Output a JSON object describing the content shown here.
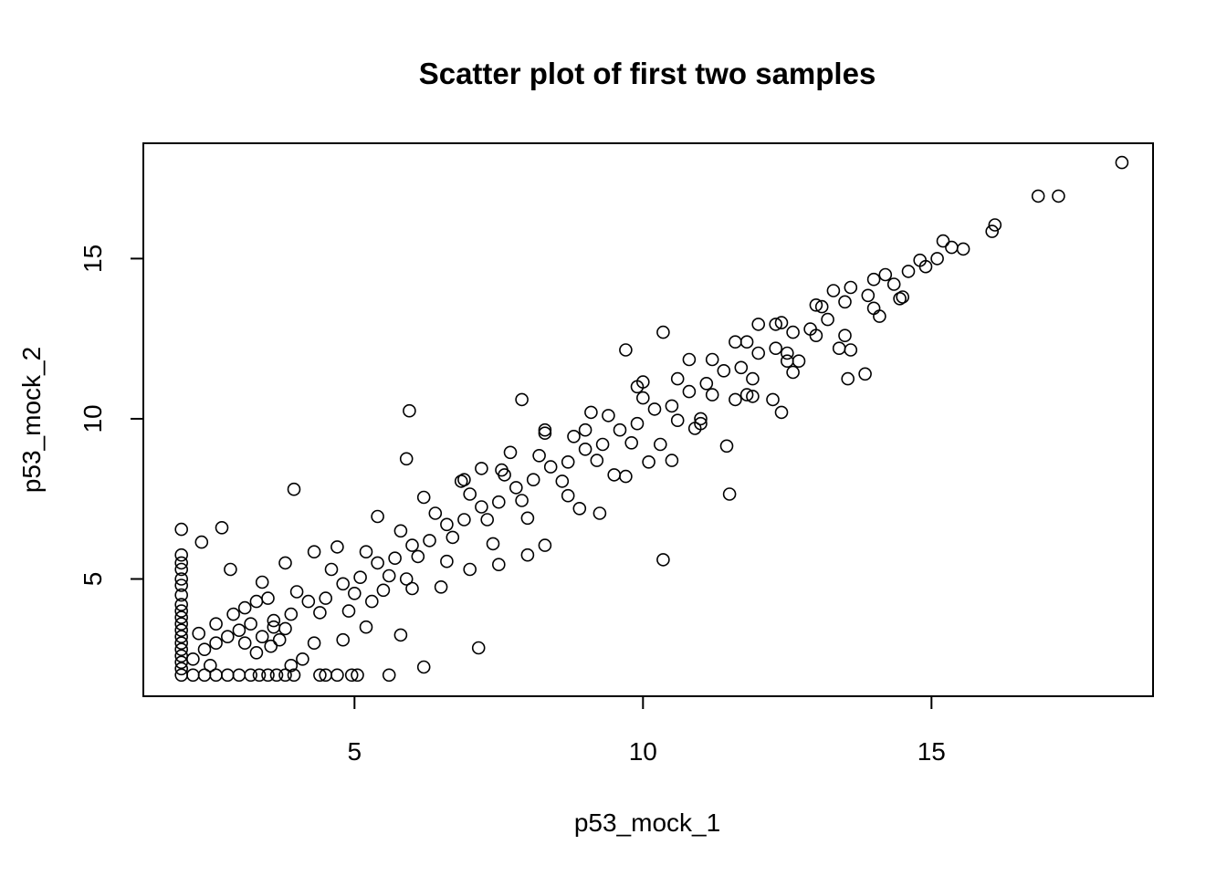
{
  "chart_data": {
    "type": "scatter",
    "title": "Scatter plot of first two samples",
    "xlabel": "p53_mock_1",
    "ylabel": "p53_mock_2",
    "xlim": [
      1.34,
      18.84
    ],
    "ylim": [
      1.34,
      18.6
    ],
    "xticks": [
      5,
      10,
      15
    ],
    "yticks": [
      5,
      10,
      15
    ],
    "grid": false,
    "legend": "none",
    "marker": "open-circle",
    "points": [
      [
        2.0,
        2.0
      ],
      [
        2.0,
        2.2
      ],
      [
        2.0,
        2.4
      ],
      [
        2.0,
        2.6
      ],
      [
        2.0,
        2.8
      ],
      [
        2.0,
        3.0
      ],
      [
        2.0,
        3.2
      ],
      [
        2.0,
        3.4
      ],
      [
        2.0,
        3.6
      ],
      [
        2.0,
        3.8
      ],
      [
        2.0,
        4.0
      ],
      [
        2.0,
        4.2
      ],
      [
        2.0,
        4.5
      ],
      [
        2.0,
        4.8
      ],
      [
        2.0,
        5.0
      ],
      [
        2.0,
        5.3
      ],
      [
        2.0,
        5.5
      ],
      [
        2.0,
        5.75
      ],
      [
        2.0,
        6.55
      ],
      [
        2.35,
        6.15
      ],
      [
        2.7,
        6.6
      ],
      [
        2.85,
        5.3
      ],
      [
        2.2,
        2.0
      ],
      [
        2.4,
        2.0
      ],
      [
        2.6,
        2.0
      ],
      [
        2.8,
        2.0
      ],
      [
        3.0,
        2.0
      ],
      [
        3.2,
        2.0
      ],
      [
        3.35,
        2.0
      ],
      [
        3.5,
        2.0
      ],
      [
        3.65,
        2.0
      ],
      [
        3.8,
        2.0
      ],
      [
        3.95,
        2.0
      ],
      [
        4.4,
        2.0
      ],
      [
        4.5,
        2.0
      ],
      [
        4.7,
        2.0
      ],
      [
        4.95,
        2.0
      ],
      [
        5.05,
        2.0
      ],
      [
        5.6,
        2.0
      ],
      [
        6.2,
        2.25
      ],
      [
        7.15,
        2.85
      ],
      [
        5.8,
        3.25
      ],
      [
        4.8,
        3.1
      ],
      [
        5.2,
        3.5
      ],
      [
        2.2,
        2.5
      ],
      [
        2.4,
        2.8
      ],
      [
        2.6,
        3.0
      ],
      [
        2.8,
        3.2
      ],
      [
        3.0,
        3.4
      ],
      [
        3.2,
        3.6
      ],
      [
        2.3,
        3.3
      ],
      [
        2.6,
        3.6
      ],
      [
        2.9,
        3.9
      ],
      [
        3.1,
        4.1
      ],
      [
        3.3,
        4.3
      ],
      [
        3.5,
        4.4
      ],
      [
        3.1,
        3.0
      ],
      [
        3.4,
        3.2
      ],
      [
        3.6,
        3.5
      ],
      [
        2.5,
        2.3
      ],
      [
        3.3,
        2.7
      ],
      [
        3.55,
        2.9
      ],
      [
        3.7,
        3.1
      ],
      [
        3.9,
        2.3
      ],
      [
        4.1,
        2.5
      ],
      [
        4.3,
        3.0
      ],
      [
        3.95,
        7.8
      ],
      [
        5.95,
        10.25
      ],
      [
        5.9,
        8.75
      ],
      [
        7.9,
        10.6
      ],
      [
        10.35,
        12.7
      ],
      [
        9.7,
        12.15
      ],
      [
        10.35,
        5.6
      ],
      [
        11.5,
        7.65
      ],
      [
        11.45,
        9.15
      ],
      [
        9.25,
        7.05
      ],
      [
        12.4,
        10.2
      ],
      [
        12.25,
        10.6
      ],
      [
        13.55,
        11.25
      ],
      [
        13.85,
        11.4
      ],
      [
        13.6,
        12.15
      ],
      [
        12.0,
        12.95
      ],
      [
        12.7,
        11.8
      ],
      [
        6.85,
        8.05
      ],
      [
        7.2,
        8.45
      ],
      [
        7.55,
        8.4
      ],
      [
        8.3,
        9.55
      ],
      [
        9.0,
        9.65
      ],
      [
        10.0,
        11.15
      ],
      [
        11.0,
        10.0
      ],
      [
        11.8,
        10.75
      ],
      [
        14.0,
        13.45
      ],
      [
        14.45,
        13.75
      ],
      [
        15.2,
        15.55
      ],
      [
        16.1,
        16.05
      ],
      [
        16.05,
        15.85
      ],
      [
        16.85,
        16.95
      ],
      [
        17.2,
        16.95
      ],
      [
        18.3,
        18.0
      ],
      [
        15.55,
        15.3
      ],
      [
        15.35,
        15.35
      ],
      [
        15.1,
        15.0
      ],
      [
        14.9,
        14.75
      ],
      [
        14.6,
        14.6
      ],
      [
        14.35,
        14.2
      ],
      [
        13.9,
        13.85
      ],
      [
        13.5,
        13.65
      ],
      [
        13.2,
        13.1
      ],
      [
        13.3,
        14.0
      ],
      [
        12.9,
        12.8
      ],
      [
        12.6,
        12.7
      ],
      [
        12.3,
        12.2
      ],
      [
        12.0,
        12.05
      ],
      [
        11.7,
        11.6
      ],
      [
        11.4,
        11.5
      ],
      [
        11.1,
        11.1
      ],
      [
        10.8,
        10.85
      ],
      [
        10.5,
        10.4
      ],
      [
        10.2,
        10.3
      ],
      [
        9.9,
        9.85
      ],
      [
        9.6,
        9.65
      ],
      [
        9.3,
        9.2
      ],
      [
        9.0,
        9.05
      ],
      [
        8.7,
        8.65
      ],
      [
        8.4,
        8.5
      ],
      [
        8.1,
        8.1
      ],
      [
        7.8,
        7.85
      ],
      [
        7.5,
        7.4
      ],
      [
        7.2,
        7.25
      ],
      [
        6.9,
        6.85
      ],
      [
        6.6,
        6.7
      ],
      [
        6.3,
        6.2
      ],
      [
        6.0,
        6.05
      ],
      [
        5.7,
        5.65
      ],
      [
        5.4,
        5.5
      ],
      [
        5.1,
        5.05
      ],
      [
        4.8,
        4.85
      ],
      [
        4.5,
        4.4
      ],
      [
        4.2,
        4.3
      ],
      [
        3.9,
        3.9
      ],
      [
        3.6,
        3.7
      ],
      [
        13.0,
        12.6
      ],
      [
        12.5,
        12.05
      ],
      [
        11.9,
        11.25
      ],
      [
        11.2,
        10.75
      ],
      [
        10.6,
        9.95
      ],
      [
        9.8,
        9.25
      ],
      [
        9.2,
        8.7
      ],
      [
        8.6,
        8.05
      ],
      [
        7.9,
        7.45
      ],
      [
        7.3,
        6.85
      ],
      [
        6.7,
        6.3
      ],
      [
        6.1,
        5.7
      ],
      [
        5.6,
        5.1
      ],
      [
        5.0,
        4.55
      ],
      [
        4.4,
        3.95
      ],
      [
        3.8,
        3.45
      ],
      [
        4.0,
        4.6
      ],
      [
        4.6,
        5.3
      ],
      [
        5.2,
        5.85
      ],
      [
        5.8,
        6.5
      ],
      [
        6.4,
        7.05
      ],
      [
        7.0,
        7.65
      ],
      [
        7.6,
        8.25
      ],
      [
        8.2,
        8.85
      ],
      [
        8.8,
        9.45
      ],
      [
        9.4,
        10.1
      ],
      [
        10.0,
        10.65
      ],
      [
        10.6,
        11.25
      ],
      [
        11.2,
        11.85
      ],
      [
        11.8,
        12.4
      ],
      [
        12.4,
        13.0
      ],
      [
        13.0,
        13.55
      ],
      [
        13.6,
        14.1
      ],
      [
        14.2,
        14.5
      ],
      [
        14.8,
        14.95
      ],
      [
        5.5,
        4.65
      ],
      [
        6.0,
        4.7
      ],
      [
        6.5,
        4.75
      ],
      [
        7.0,
        5.3
      ],
      [
        7.5,
        5.45
      ],
      [
        8.0,
        5.75
      ],
      [
        8.3,
        6.05
      ],
      [
        8.9,
        7.2
      ],
      [
        9.7,
        8.2
      ],
      [
        10.1,
        8.65
      ],
      [
        10.5,
        8.7
      ],
      [
        10.9,
        9.7
      ],
      [
        11.6,
        10.6
      ],
      [
        12.5,
        11.8
      ],
      [
        13.5,
        12.6
      ],
      [
        14.5,
        13.8
      ],
      [
        3.4,
        4.9
      ],
      [
        3.8,
        5.5
      ],
      [
        4.3,
        5.85
      ],
      [
        4.7,
        6.0
      ],
      [
        5.4,
        6.95
      ],
      [
        6.2,
        7.55
      ],
      [
        6.9,
        8.1
      ],
      [
        7.7,
        8.95
      ],
      [
        8.3,
        9.65
      ],
      [
        9.1,
        10.2
      ],
      [
        9.9,
        11.0
      ],
      [
        10.8,
        11.85
      ],
      [
        11.6,
        12.4
      ],
      [
        12.3,
        12.95
      ],
      [
        13.1,
        13.5
      ],
      [
        14.0,
        14.35
      ],
      [
        4.9,
        4.0
      ],
      [
        5.3,
        4.3
      ],
      [
        5.9,
        5.0
      ],
      [
        6.6,
        5.55
      ],
      [
        7.4,
        6.1
      ],
      [
        8.0,
        6.9
      ],
      [
        8.7,
        7.6
      ],
      [
        9.5,
        8.25
      ],
      [
        10.3,
        9.2
      ],
      [
        11.0,
        9.85
      ],
      [
        11.9,
        10.7
      ],
      [
        12.6,
        11.45
      ],
      [
        13.4,
        12.2
      ],
      [
        14.1,
        13.2
      ]
    ]
  }
}
